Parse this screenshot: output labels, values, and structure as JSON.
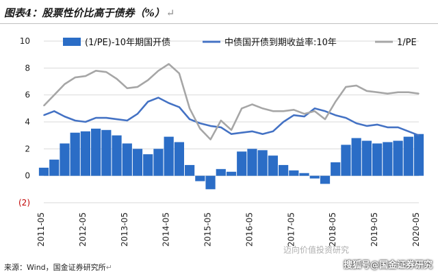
{
  "page": {
    "title": "图表4：股票性价比高于债券（%）",
    "title_mark": "↵",
    "source": "来源：Wind，国金证券研究所",
    "source_mark": "↵",
    "watermark": "搜狐号@国金证券研究",
    "watermark_wechat": "迈向价值投资研究"
  },
  "chart_data": {
    "type": "line+bar",
    "ylim": [
      -2,
      10
    ],
    "yticks": [
      -2,
      0,
      2,
      4,
      6,
      8,
      10
    ],
    "ytick_labels": [
      "(2)",
      "0",
      "2",
      "4",
      "6",
      "8",
      "10"
    ],
    "xticks": [
      "2011-05",
      "2012-05",
      "2013-05",
      "2014-05",
      "2015-05",
      "2016-05",
      "2017-05",
      "2018-05",
      "2019-05",
      "2020-05"
    ],
    "x_start": "2011-05",
    "x_end": "2020-05",
    "colors": {
      "bar": "#2b6dc6",
      "bond": "#4472c4",
      "pe": "#a6a6a6",
      "grid": "#d9d9d9"
    },
    "grid": "horizontal",
    "legend_position": "top",
    "series": [
      {
        "name": "(1/PE)-10年期国开债",
        "kind": "bar",
        "x": [
          "2011-05",
          "2011-08",
          "2011-11",
          "2012-02",
          "2012-05",
          "2012-08",
          "2012-11",
          "2013-02",
          "2013-05",
          "2013-08",
          "2013-11",
          "2014-02",
          "2014-05",
          "2014-08",
          "2014-11",
          "2015-02",
          "2015-05",
          "2015-08",
          "2015-11",
          "2016-02",
          "2016-05",
          "2016-08",
          "2016-11",
          "2017-02",
          "2017-05",
          "2017-08",
          "2017-11",
          "2018-02",
          "2018-05",
          "2018-08",
          "2018-11",
          "2019-02",
          "2019-05",
          "2019-08",
          "2019-11",
          "2020-02",
          "2020-05"
        ],
        "values": [
          0.6,
          1.2,
          2.4,
          3.2,
          3.3,
          3.5,
          3.4,
          3.0,
          2.4,
          2.0,
          1.6,
          2.0,
          2.9,
          2.5,
          0.8,
          -0.4,
          -1.0,
          0.5,
          0.3,
          1.8,
          2.0,
          1.9,
          1.5,
          0.8,
          0.4,
          0.2,
          -0.2,
          -0.6,
          1.0,
          2.3,
          2.8,
          2.6,
          2.4,
          2.5,
          2.6,
          2.9,
          3.1
        ]
      },
      {
        "name": "中债国开债到期收益率:10年",
        "kind": "line",
        "x": [
          "2011-05",
          "2011-08",
          "2011-11",
          "2012-02",
          "2012-05",
          "2012-08",
          "2012-11",
          "2013-02",
          "2013-05",
          "2013-08",
          "2013-11",
          "2014-02",
          "2014-05",
          "2014-08",
          "2014-11",
          "2015-02",
          "2015-05",
          "2015-08",
          "2015-11",
          "2016-02",
          "2016-05",
          "2016-08",
          "2016-11",
          "2017-02",
          "2017-05",
          "2017-08",
          "2017-11",
          "2018-02",
          "2018-05",
          "2018-08",
          "2018-11",
          "2019-02",
          "2019-05",
          "2019-08",
          "2019-11",
          "2020-02",
          "2020-05"
        ],
        "values": [
          4.5,
          4.8,
          4.4,
          4.1,
          4.0,
          4.3,
          4.3,
          4.2,
          4.1,
          4.6,
          5.5,
          5.8,
          5.4,
          5.1,
          4.2,
          3.9,
          3.7,
          3.6,
          3.1,
          3.2,
          3.3,
          3.1,
          3.3,
          4.0,
          4.5,
          4.4,
          5.0,
          4.8,
          4.5,
          4.3,
          3.9,
          3.7,
          3.8,
          3.6,
          3.6,
          3.3,
          3.0
        ]
      },
      {
        "name": "1/PE",
        "kind": "line",
        "x": [
          "2011-05",
          "2011-08",
          "2011-11",
          "2012-02",
          "2012-05",
          "2012-08",
          "2012-11",
          "2013-02",
          "2013-05",
          "2013-08",
          "2013-11",
          "2014-02",
          "2014-05",
          "2014-08",
          "2014-11",
          "2015-02",
          "2015-05",
          "2015-08",
          "2015-11",
          "2016-02",
          "2016-05",
          "2016-08",
          "2016-11",
          "2017-02",
          "2017-05",
          "2017-08",
          "2017-11",
          "2018-02",
          "2018-05",
          "2018-08",
          "2018-11",
          "2019-02",
          "2019-05",
          "2019-08",
          "2019-11",
          "2020-02",
          "2020-05"
        ],
        "values": [
          5.2,
          6.0,
          6.8,
          7.3,
          7.4,
          7.8,
          7.7,
          7.2,
          6.5,
          6.6,
          7.1,
          7.8,
          8.3,
          7.6,
          5.0,
          3.5,
          2.7,
          4.1,
          3.4,
          5.0,
          5.3,
          5.0,
          4.8,
          4.8,
          4.9,
          4.6,
          4.8,
          4.2,
          5.5,
          6.6,
          6.7,
          6.3,
          6.2,
          6.1,
          6.2,
          6.2,
          6.1
        ]
      }
    ]
  }
}
